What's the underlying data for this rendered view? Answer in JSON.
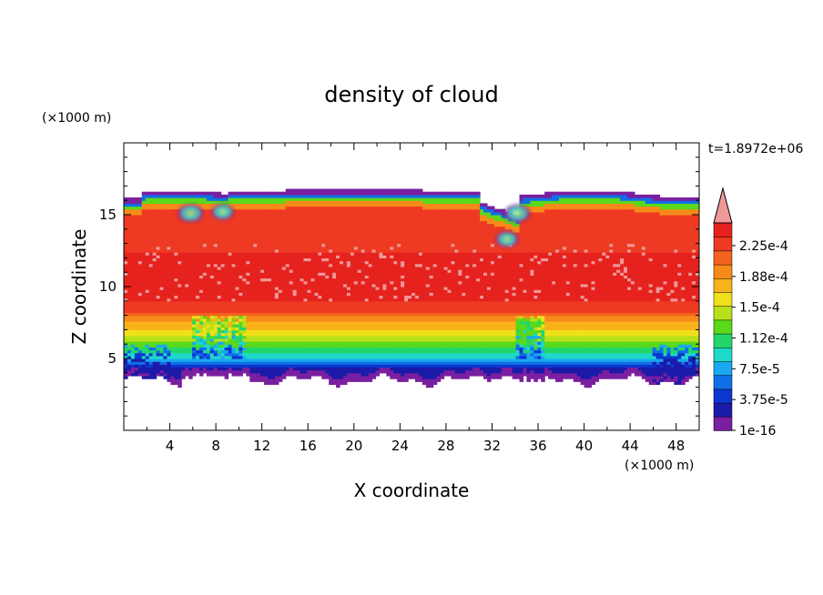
{
  "chart_data": {
    "type": "heatmap",
    "title": "density of cloud",
    "xlabel": "X coordinate",
    "ylabel": "Z coordinate",
    "x_unit": "(×1000 m)",
    "y_unit": "(×1000 m)",
    "time_label": "t=1.8972e+06",
    "xlim": [
      0,
      50
    ],
    "ylim": [
      0,
      20
    ],
    "x_ticks": [
      4,
      8,
      12,
      16,
      20,
      24,
      28,
      32,
      36,
      40,
      44,
      48
    ],
    "x_tick_labels": [
      "4",
      "8",
      "12",
      "16",
      "20",
      "24",
      "28",
      "32",
      "36",
      "40",
      "44",
      "48"
    ],
    "y_ticks": [
      5,
      10,
      15
    ],
    "y_tick_labels": [
      "5",
      "10",
      "15"
    ],
    "colorbar": {
      "levels": [
        "2.25e-4",
        "1.88e-4",
        "1.5e-4",
        "1.12e-4",
        "7.5e-5",
        "3.75e-5",
        "1e-16"
      ],
      "colors": [
        "#7a1fa0",
        "#1c1aa8",
        "#0b36cf",
        "#0f6fe6",
        "#1aa8f0",
        "#1ed8c8",
        "#22d66a",
        "#5ad81a",
        "#b8e01a",
        "#f0e01a",
        "#f8b21a",
        "#f88a1a",
        "#f46320",
        "#ee3a22",
        "#e6221e",
        "#ef9898"
      ]
    },
    "cloud_field": {
      "x_range": [
        0,
        50
      ],
      "cloud_base_km": [
        3.5,
        4.5
      ],
      "cloud_top_km": [
        16.3,
        16.8
      ],
      "max_density_band_km": [
        8,
        14
      ],
      "features": [
        "Kelvin-Helmholtz billows near cloud top at x≈4–10 and x≈31–36",
        "Downdraft penetration at x≈34–36"
      ]
    }
  }
}
